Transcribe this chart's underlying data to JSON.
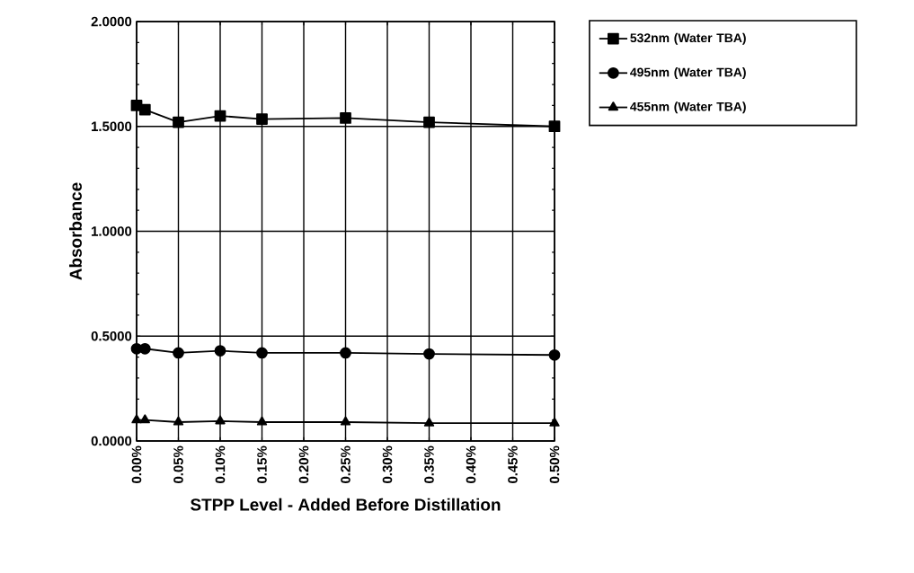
{
  "chart_data": {
    "type": "line",
    "xlabel": "STPP Level - Added Before Distillation",
    "ylabel": "Absorbance",
    "x": [
      0,
      0.01,
      0.05,
      0.1,
      0.15,
      0.25,
      0.35,
      0.5
    ],
    "series": [
      {
        "name": "532nm (Water TBA)",
        "color": "#000000",
        "marker": "square",
        "values": [
          1.6,
          1.58,
          1.52,
          1.55,
          1.535,
          1.54,
          1.52,
          1.5
        ]
      },
      {
        "name": "495nm (Water TBA)",
        "color": "#000000",
        "marker": "circle",
        "values": [
          0.44,
          0.44,
          0.42,
          0.43,
          0.42,
          0.42,
          0.415,
          0.41
        ]
      },
      {
        "name": "455nm (Water TBA)",
        "color": "#000000",
        "marker": "triangle",
        "values": [
          0.1,
          0.1,
          0.09,
          0.095,
          0.09,
          0.09,
          0.085,
          0.085
        ]
      }
    ],
    "xlim": [
      0,
      0.5
    ],
    "ylim": [
      0,
      2
    ],
    "xticks": [
      {
        "value": 0,
        "label": "0.00%"
      },
      {
        "value": 0.05,
        "label": "0.05%"
      },
      {
        "value": 0.1,
        "label": "0.10%"
      },
      {
        "value": 0.15,
        "label": "0.15%"
      },
      {
        "value": 0.2,
        "label": "0.20%"
      },
      {
        "value": 0.25,
        "label": "0.25%"
      },
      {
        "value": 0.3,
        "label": "0.30%"
      },
      {
        "value": 0.35,
        "label": "0.35%"
      },
      {
        "value": 0.4,
        "label": "0.40%"
      },
      {
        "value": 0.45,
        "label": "0.45%"
      },
      {
        "value": 0.5,
        "label": "0.50%"
      }
    ],
    "yticks": [
      {
        "value": 0,
        "label": "0.0000"
      },
      {
        "value": 0.5,
        "label": "0.5000"
      },
      {
        "value": 1,
        "label": "1.0000"
      },
      {
        "value": 1.5,
        "label": "1.5000"
      },
      {
        "value": 2,
        "label": "2.0000"
      }
    ],
    "grid": true,
    "legend": "top right",
    "line_style": "solid"
  }
}
